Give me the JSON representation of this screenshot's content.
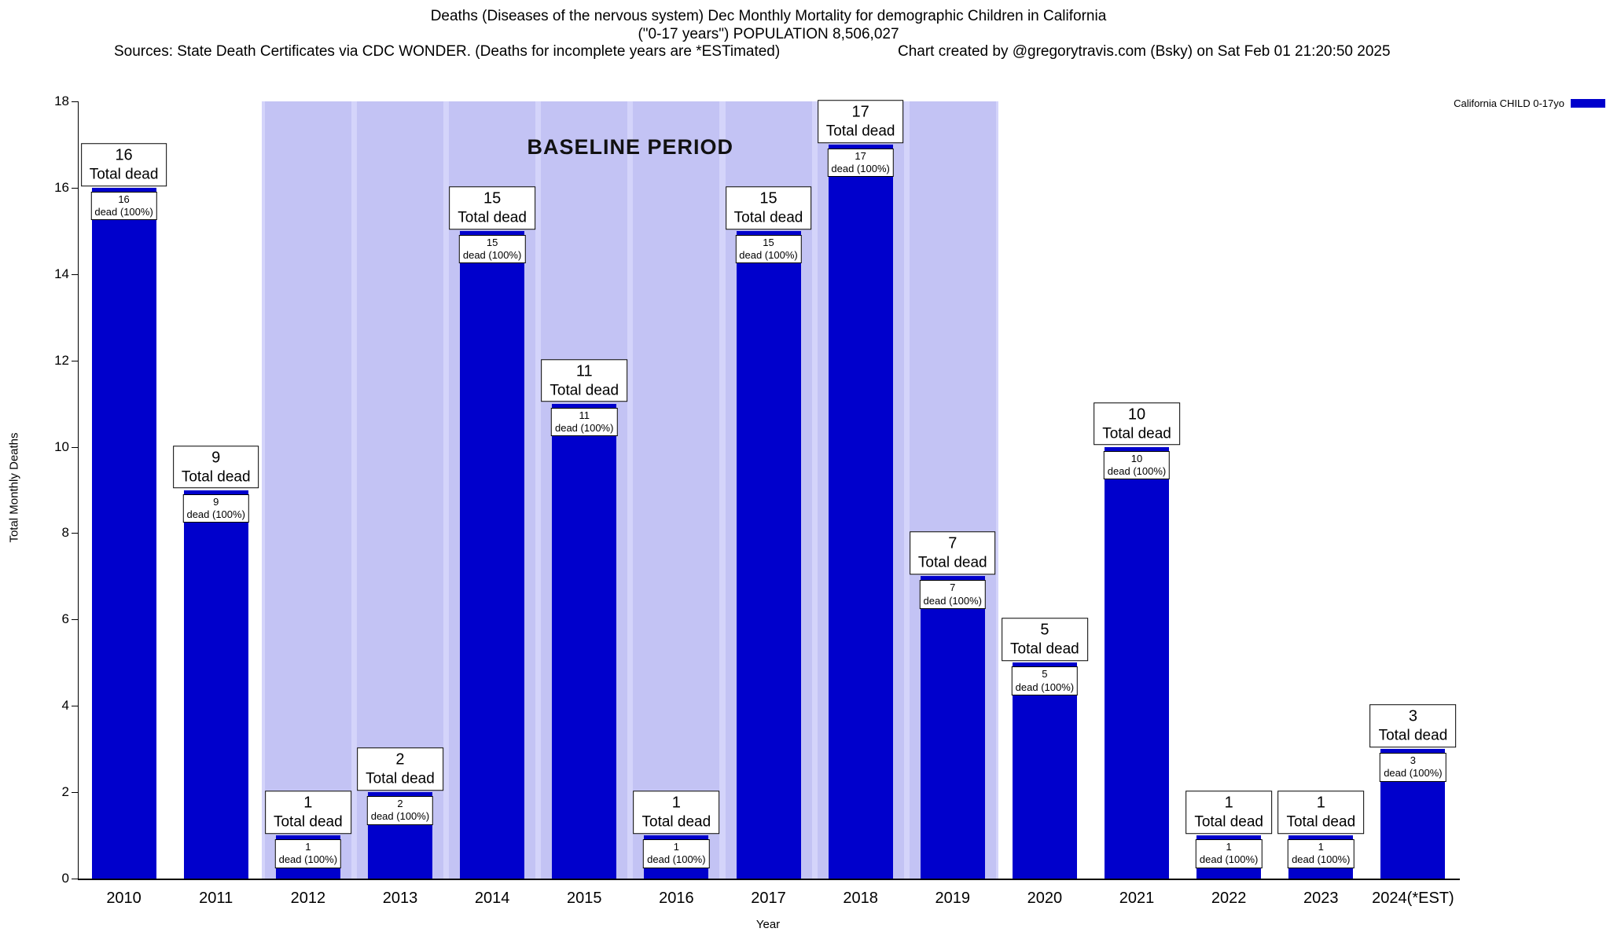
{
  "header": {
    "title_line1": "Deaths (Diseases of the nervous system) Dec Monthly Mortality for demographic Children in California",
    "title_line2": "(\"0-17 years\") POPULATION 8,506,027",
    "sources": "Sources: State Death Certificates via CDC WONDER. (Deaths for incomplete years are *ESTimated)",
    "credit": "Chart created by @gregorytravis.com (Bsky) on Sat Feb 01 21:20:50 2025"
  },
  "legend": {
    "label": "California CHILD 0-17yo",
    "color": "#0000cc"
  },
  "chart_data": {
    "type": "bar",
    "title": "Deaths (Diseases of the nervous system) Dec Monthly Mortality for demographic Children in California (\"0-17 years\") POPULATION 8,506,027",
    "xlabel": "Year",
    "ylabel": "Total Monthly Deaths",
    "ylim": [
      0,
      18
    ],
    "ytick_step": 2,
    "grid": false,
    "legend_position": "top-right",
    "categories": [
      "2010",
      "2011",
      "2012",
      "2013",
      "2014",
      "2015",
      "2016",
      "2017",
      "2018",
      "2019",
      "2020",
      "2021",
      "2022",
      "2023",
      "2024(*EST)"
    ],
    "values": [
      16,
      9,
      1,
      2,
      15,
      11,
      1,
      15,
      17,
      7,
      5,
      10,
      1,
      1,
      3
    ],
    "bar_color": "#0000cc",
    "total_label_suffix": "Total dead",
    "bar_label_suffix": "dead (100%)",
    "baseline": {
      "label": "BASELINE PERIOD",
      "start_category": "2012",
      "end_category": "2019",
      "start_index": 2,
      "end_index": 9,
      "band_color": "#d4d4fa",
      "stripe_color": "#c3c3f4"
    }
  }
}
